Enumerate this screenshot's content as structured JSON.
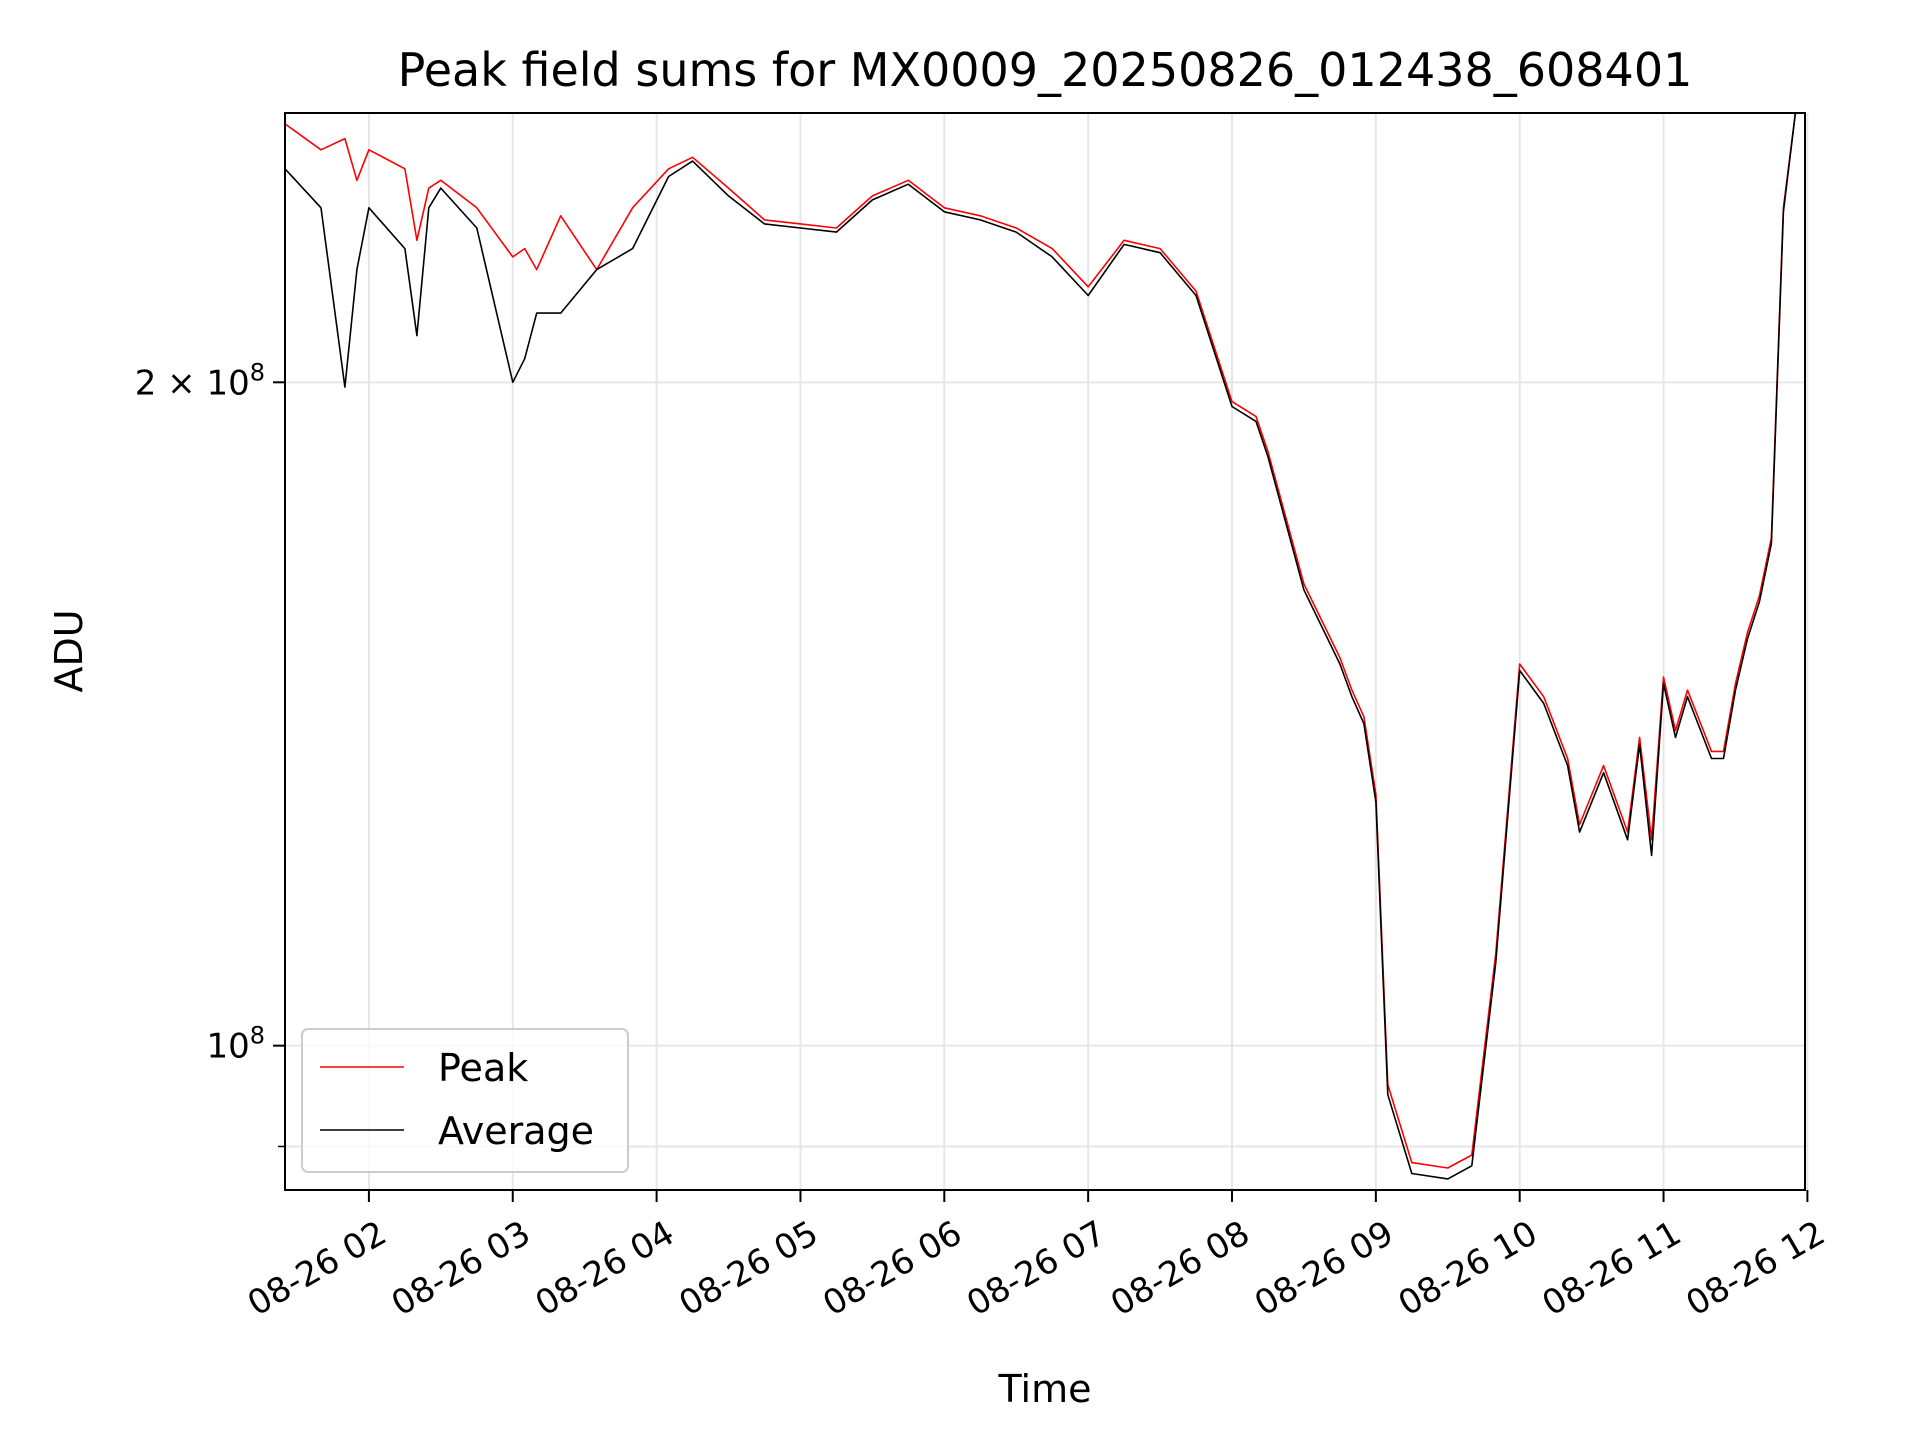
{
  "chart_data": {
    "type": "line",
    "title": "Peak field sums for MX0009_20250826_012438_608401",
    "xlabel": "Time",
    "ylabel": "ADU",
    "x_unit": "date-time (2025-08-26, hours)",
    "y_scale": "log",
    "xlim": [
      "2025-08-26 01:25",
      "2025-08-26 11:59"
    ],
    "ylim": [
      86000000,
      265000000
    ],
    "x_ticks": [
      "08-26 02",
      "08-26 03",
      "08-26 04",
      "08-26 05",
      "08-26 06",
      "08-26 07",
      "08-26 08",
      "08-26 09",
      "08-26 10",
      "08-26 11",
      "08-26 12"
    ],
    "y_ticks": [
      {
        "value": 200000000,
        "label_base": "2 × 10",
        "label_exp": "8"
      },
      {
        "value": 100000000,
        "label_base": "10",
        "label_exp": "8"
      }
    ],
    "y_minor_ticks": [
      90000000
    ],
    "grid": true,
    "legend": "lower-left",
    "colors": {
      "peak": "#ff0000",
      "average": "#000000",
      "grid": "#e6e6e6"
    },
    "x": [
      "2025-08-26 01:25",
      "2025-08-26 01:40",
      "2025-08-26 01:50",
      "2025-08-26 01:55",
      "2025-08-26 02:00",
      "2025-08-26 02:15",
      "2025-08-26 02:20",
      "2025-08-26 02:25",
      "2025-08-26 02:30",
      "2025-08-26 02:45",
      "2025-08-26 03:00",
      "2025-08-26 03:05",
      "2025-08-26 03:10",
      "2025-08-26 03:20",
      "2025-08-26 03:35",
      "2025-08-26 03:50",
      "2025-08-26 04:05",
      "2025-08-26 04:15",
      "2025-08-26 04:30",
      "2025-08-26 04:45",
      "2025-08-26 05:00",
      "2025-08-26 05:15",
      "2025-08-26 05:30",
      "2025-08-26 05:45",
      "2025-08-26 06:00",
      "2025-08-26 06:15",
      "2025-08-26 06:30",
      "2025-08-26 06:45",
      "2025-08-26 07:00",
      "2025-08-26 07:15",
      "2025-08-26 07:30",
      "2025-08-26 07:45",
      "2025-08-26 08:00",
      "2025-08-26 08:10",
      "2025-08-26 08:15",
      "2025-08-26 08:30",
      "2025-08-26 08:45",
      "2025-08-26 08:50",
      "2025-08-26 08:55",
      "2025-08-26 09:00",
      "2025-08-26 09:05",
      "2025-08-26 09:15",
      "2025-08-26 09:30",
      "2025-08-26 09:40",
      "2025-08-26 09:50",
      "2025-08-26 10:00",
      "2025-08-26 10:10",
      "2025-08-26 10:20",
      "2025-08-26 10:25",
      "2025-08-26 10:35",
      "2025-08-26 10:45",
      "2025-08-26 10:50",
      "2025-08-26 10:55",
      "2025-08-26 11:00",
      "2025-08-26 11:05",
      "2025-08-26 11:10",
      "2025-08-26 11:20",
      "2025-08-26 11:25",
      "2025-08-26 11:30",
      "2025-08-26 11:35",
      "2025-08-26 11:40",
      "2025-08-26 11:45",
      "2025-08-26 11:50",
      "2025-08-26 11:55",
      "2025-08-26 11:59"
    ],
    "series": [
      {
        "name": "Peak",
        "values": [
          262000000,
          255000000,
          258000000,
          247000000,
          255000000,
          250000000,
          232000000,
          245000000,
          247000000,
          240000000,
          228000000,
          230000000,
          225000000,
          238000000,
          225000000,
          240000000,
          250000000,
          253000000,
          245000000,
          237000000,
          236000000,
          235000000,
          243000000,
          247000000,
          240000000,
          238000000,
          235000000,
          230000000,
          221000000,
          232000000,
          230000000,
          220000000,
          196000000,
          193000000,
          186000000,
          162000000,
          150000000,
          145000000,
          141000000,
          130000000,
          96000000,
          88500000,
          88000000,
          89200000,
          110000000,
          149000000,
          144000000,
          135000000,
          126000000,
          134000000,
          125000000,
          138000000,
          124000000,
          147000000,
          139000000,
          145000000,
          136000000,
          136000000,
          146000000,
          154000000,
          160000000,
          170000000,
          240000000,
          265000000,
          265000000
        ]
      },
      {
        "name": "Average",
        "values": [
          250000000,
          240000000,
          199000000,
          225000000,
          240000000,
          230000000,
          210000000,
          240000000,
          245000000,
          235000000,
          200000000,
          205000000,
          215000000,
          215000000,
          225000000,
          230000000,
          248000000,
          252000000,
          243000000,
          236000000,
          235000000,
          234000000,
          242000000,
          246000000,
          239000000,
          237000000,
          234000000,
          228000000,
          219000000,
          231000000,
          229000000,
          219000000,
          195000000,
          192000000,
          185000000,
          161000000,
          149000000,
          144000000,
          140000000,
          129000000,
          95000000,
          87500000,
          87000000,
          88200000,
          109000000,
          148000000,
          143000000,
          134000000,
          125000000,
          133000000,
          124000000,
          137000000,
          122000000,
          146000000,
          138000000,
          144000000,
          135000000,
          135000000,
          145000000,
          153000000,
          159000000,
          169000000,
          239000000,
          265000000,
          265000000
        ]
      }
    ]
  }
}
